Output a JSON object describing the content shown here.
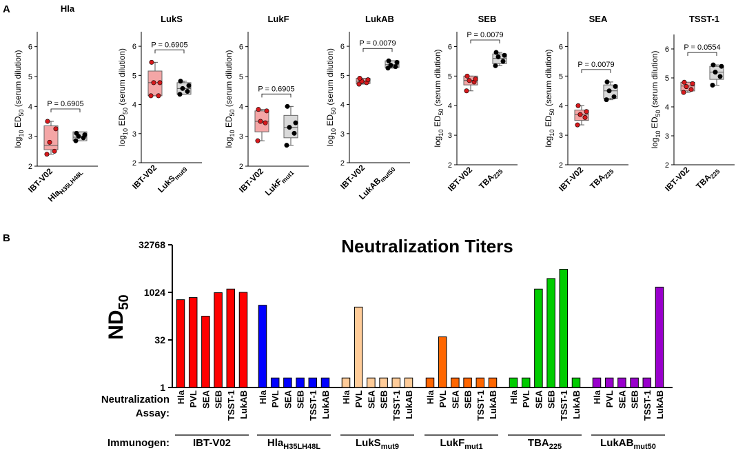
{
  "panel_labels": {
    "a": "A",
    "b": "B"
  },
  "panel_a": {
    "ylabel": {
      "prefix": "log",
      "prefix_sub": "10",
      "mid": " ED",
      "mid_sub": "50",
      "suffix": " (serum dilution)"
    },
    "ylim": [
      2,
      6.5
    ],
    "yticks": [
      2,
      3,
      4,
      5,
      6
    ],
    "group1_color": "#f4a6a6",
    "group2_color": "#d9d9d9",
    "dot1_color": "#d7191c",
    "dot2_color": "#000000"
  },
  "chart_data": [
    {
      "type": "box",
      "title": "Hla",
      "pvalue": "P = 0.6905",
      "groups": [
        {
          "label": "IBT-V02",
          "sub": "",
          "points": [
            2.4,
            2.5,
            2.8,
            3.25,
            3.5
          ],
          "q1": 2.55,
          "median": 2.7,
          "q3": 3.35
        },
        {
          "label": "Hla",
          "sub": "H35LH48L",
          "points": [
            2.85,
            2.95,
            3.0,
            3.05,
            3.1
          ],
          "q1": 2.85,
          "median": 2.97,
          "q3": 3.15
        }
      ]
    },
    {
      "type": "box",
      "title": "LukS",
      "pvalue": "P = 0.6905",
      "groups": [
        {
          "label": "IBT-V02",
          "sub": "",
          "points": [
            4.3,
            4.3,
            4.75,
            4.75,
            5.45
          ],
          "q1": 4.3,
          "median": 4.75,
          "q3": 5.15
        },
        {
          "label": "LukS",
          "sub": "mut9",
          "points": [
            4.35,
            4.45,
            4.55,
            4.65,
            4.8
          ],
          "q1": 4.35,
          "median": 4.55,
          "q3": 4.75
        }
      ]
    },
    {
      "type": "box",
      "title": "LukF",
      "pvalue": "P = 0.6905",
      "groups": [
        {
          "label": "IBT-V02",
          "sub": "",
          "points": [
            2.85,
            3.45,
            3.5,
            3.85,
            3.9
          ],
          "q1": 3.15,
          "median": 3.5,
          "q3": 3.85
        },
        {
          "label": "LukF",
          "sub": "mut1",
          "points": [
            2.7,
            3.1,
            3.3,
            3.45,
            4.0
          ],
          "q1": 2.95,
          "median": 3.3,
          "q3": 3.7
        }
      ]
    },
    {
      "type": "box",
      "title": "LukAB",
      "pvalue": "P = 0.0079",
      "groups": [
        {
          "label": "IBT-V02",
          "sub": "",
          "points": [
            4.7,
            4.75,
            4.8,
            4.85,
            4.9
          ],
          "q1": 4.72,
          "median": 4.8,
          "q3": 4.9
        },
        {
          "label": "LukAB",
          "sub": "mut50",
          "points": [
            5.25,
            5.3,
            5.35,
            5.45,
            5.5
          ],
          "q1": 5.27,
          "median": 5.37,
          "q3": 5.5
        }
      ]
    },
    {
      "type": "box",
      "title": "SEB",
      "pvalue": "P = 0.0079",
      "groups": [
        {
          "label": "IBT-V02",
          "sub": "",
          "points": [
            4.5,
            4.8,
            4.85,
            4.9,
            5.0
          ],
          "q1": 4.7,
          "median": 4.85,
          "q3": 5.0
        },
        {
          "label": "TBA",
          "sub": "225",
          "points": [
            5.35,
            5.5,
            5.65,
            5.7,
            5.8
          ],
          "q1": 5.42,
          "median": 5.6,
          "q3": 5.75
        }
      ]
    },
    {
      "type": "box",
      "title": "SEA",
      "pvalue": "P = 0.0079",
      "groups": [
        {
          "label": "IBT-V02",
          "sub": "",
          "points": [
            3.35,
            3.6,
            3.7,
            3.8,
            4.0
          ],
          "q1": 3.5,
          "median": 3.7,
          "q3": 3.85
        },
        {
          "label": "TBA",
          "sub": "225",
          "points": [
            4.2,
            4.3,
            4.5,
            4.65,
            4.8
          ],
          "q1": 4.25,
          "median": 4.5,
          "q3": 4.7
        }
      ]
    },
    {
      "type": "box",
      "title": "TSST-1",
      "pvalue": "P = 0.0554",
      "groups": [
        {
          "label": "IBT-V02",
          "sub": "",
          "points": [
            4.5,
            4.6,
            4.7,
            4.8,
            4.85
          ],
          "q1": 4.55,
          "median": 4.72,
          "q3": 4.85
        },
        {
          "label": "TBA",
          "sub": "225",
          "points": [
            4.75,
            5.05,
            5.2,
            5.4,
            5.45
          ],
          "q1": 4.95,
          "median": 5.2,
          "q3": 5.4
        }
      ]
    },
    {
      "type": "bar",
      "title": "Neutralization Titers",
      "ylabel": "ND",
      "ylabel_sub": "50",
      "yscale": "log2",
      "ylim": [
        1,
        32768
      ],
      "yticks": [
        "1",
        "32",
        "1024",
        "32768"
      ],
      "row_label_1": "Neutralization",
      "row_label_2": "Assay:",
      "immunogen_label": "Immunogen:",
      "assays": [
        "Hla",
        "PVL",
        "SEA",
        "SEB",
        "TSST-1",
        "LukAB"
      ],
      "series": [
        {
          "name": "IBT-V02",
          "sub": "",
          "color": "#ff0000",
          "values": [
            600,
            700,
            180,
            1000,
            1300,
            1024
          ]
        },
        {
          "name": "Hla",
          "sub": "H35LH48L",
          "color": "#0000ff",
          "values": [
            400,
            2,
            2,
            2,
            2,
            2
          ]
        },
        {
          "name": "LukS",
          "sub": "mut9",
          "color": "#ffcc99",
          "values": [
            2,
            350,
            2,
            2,
            2,
            2
          ]
        },
        {
          "name": "LukF",
          "sub": "mut1",
          "color": "#ff6600",
          "values": [
            2,
            40,
            2,
            2,
            2,
            2
          ]
        },
        {
          "name": "TBA",
          "sub": "225",
          "color": "#00cc00",
          "values": [
            2,
            2,
            1300,
            2800,
            5500,
            2
          ]
        },
        {
          "name": "LukAB",
          "sub": "mut50",
          "color": "#9900cc",
          "values": [
            2,
            2,
            2,
            2,
            2,
            1500
          ]
        }
      ]
    }
  ]
}
